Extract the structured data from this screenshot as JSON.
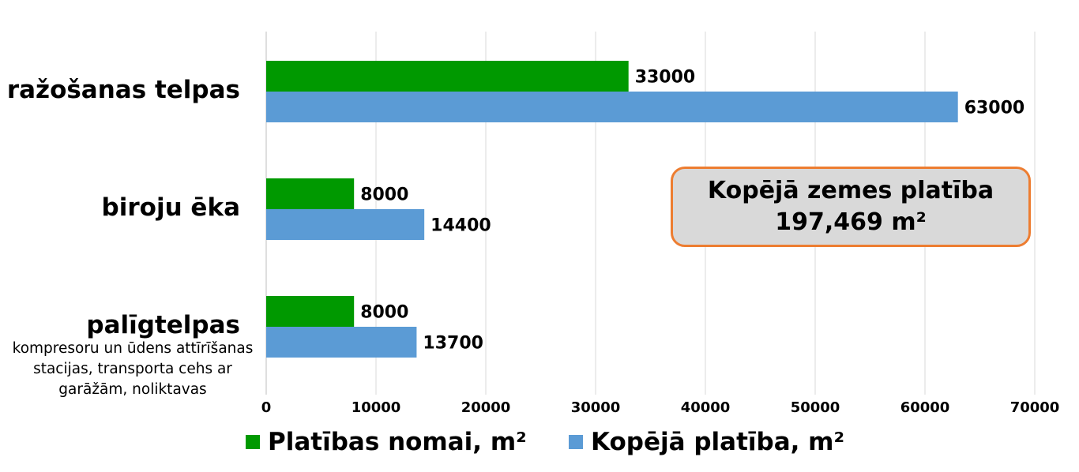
{
  "chart_data": {
    "type": "bar",
    "orientation": "horizontal",
    "categories": [
      "ražošanas telpas",
      "biroju ēka",
      "palīgtelpas"
    ],
    "category_sublabels": [
      "",
      "",
      "kompresoru un ūdens attīrīšanas stacijas, transporta cehs ar garāžām, noliktavas"
    ],
    "series": [
      {
        "name": "Platības nomai, m²",
        "values": [
          33000,
          8000,
          8000
        ],
        "color": "#009900"
      },
      {
        "name": "Kopējā platība, m²",
        "values": [
          63000,
          14400,
          13700
        ],
        "color": "#5B9BD5"
      }
    ],
    "xlim": [
      0,
      70000
    ],
    "xticks": [
      "0",
      "10000",
      "20000",
      "30000",
      "40000",
      "50000",
      "60000",
      "70000"
    ],
    "grid": true,
    "data_labels": true,
    "legend_position": "bottom"
  },
  "annotation": {
    "line1": "Kopējā zemes platība",
    "line2": "197,469 m²",
    "border_color": "#ED7D31",
    "fill_color": "#D9D9D9"
  }
}
